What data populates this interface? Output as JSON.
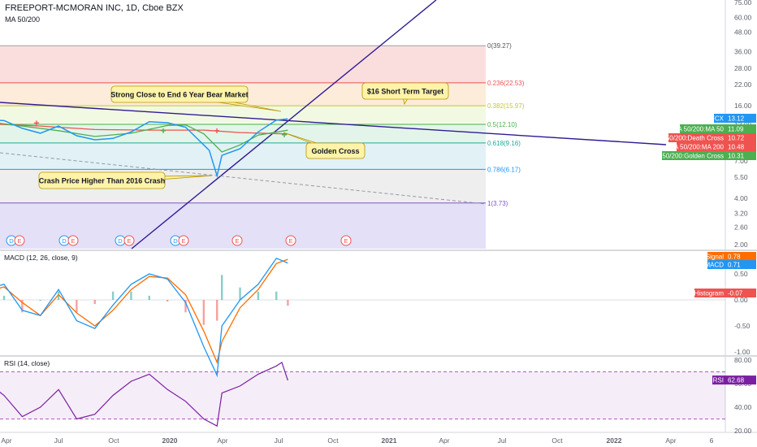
{
  "header": {
    "title": "FREEPORT-MCMORAN INC, 1D, Cboe BZX",
    "ma_label": "MA 50/200"
  },
  "colors": {
    "price": "#2196f3",
    "ma50": "#4caf50",
    "ma200": "#ef5350",
    "trend": "#311b92",
    "macd": "#2196f3",
    "signal": "#ff6d00",
    "rsi": "#7b1fa2"
  },
  "chart_data": [
    {
      "type": "line",
      "title": "FREEPORT-MCMORAN INC, 1D, Cboe BZX",
      "scale": "log",
      "x_ticks": [
        "Apr",
        "Jul",
        "Oct",
        "2020",
        "Apr",
        "Jul",
        "Oct",
        "2021",
        "Apr",
        "Jul",
        "Oct",
        "2022",
        "Apr",
        "6"
      ],
      "y_ticks": [
        "75.00",
        "60.00",
        "48.00",
        "36.00",
        "28.00",
        "22.00",
        "16.00",
        "12.00",
        "10.00",
        "7.00",
        "5.50",
        "4.00",
        "3.20",
        "2.60",
        "2.00"
      ],
      "ylim": [
        2.0,
        75.0
      ],
      "series": [
        {
          "name": "FCX",
          "x": [
            "2019-03",
            "2019-04",
            "2019-05",
            "2019-06",
            "2019-07",
            "2019-08",
            "2019-09",
            "2019-10",
            "2019-11",
            "2019-12",
            "2020-01",
            "2020-02",
            "2020-03-10",
            "2020-03-23",
            "2020-04",
            "2020-05",
            "2020-06",
            "2020-07",
            "2020-07-20"
          ],
          "values": [
            13.0,
            12.8,
            11.4,
            10.6,
            11.8,
            10.2,
            9.6,
            9.8,
            10.8,
            12.6,
            12.4,
            11.6,
            8.2,
            5.6,
            7.6,
            8.4,
            10.8,
            12.9,
            13.12
          ]
        },
        {
          "name": "MA 50",
          "x": [
            "2019-03",
            "2019-05",
            "2019-07",
            "2019-09",
            "2019-11",
            "2020-01",
            "2020-02",
            "2020-03",
            "2020-04",
            "2020-05",
            "2020-06",
            "2020-07-20"
          ],
          "values": [
            12.6,
            11.8,
            11.0,
            10.1,
            10.6,
            11.9,
            12.0,
            10.5,
            8.0,
            8.9,
            10.3,
            11.09
          ]
        },
        {
          "name": "MA 200",
          "x": [
            "2019-03",
            "2019-06",
            "2019-09",
            "2019-12",
            "2020-03",
            "2020-05",
            "2020-07-20"
          ],
          "values": [
            12.2,
            11.8,
            11.2,
            11.1,
            11.1,
            10.7,
            10.48
          ]
        }
      ],
      "fibonacci": [
        {
          "label": "0(39.27)",
          "value": 39.27
        },
        {
          "label": "0.236(22.53)",
          "value": 22.53
        },
        {
          "label": "0.382(15.97)",
          "value": 15.97
        },
        {
          "label": "0.5(12.10)",
          "value": 12.1
        },
        {
          "label": "0.618(9.16)",
          "value": 9.16
        },
        {
          "label": "0.786(6.17)",
          "value": 6.17
        },
        {
          "label": "1(3.73)",
          "value": 3.73
        }
      ],
      "annotations": [
        "Strong Close to End 6 Year Bear Market",
        "$16 Short Term Target",
        "Golden Cross",
        "Crash Price Higher Than 2016 Crash"
      ],
      "price_tags": [
        {
          "label": "FCX",
          "value": "13.12",
          "color": "#2196f3"
        },
        {
          "label": "MA 50/200:MA 50",
          "value": "11.09",
          "color": "#4caf50"
        },
        {
          "label": "MA 50/200:Death Cross",
          "value": "10.72",
          "color": "#ef5350"
        },
        {
          "label": "MA 50/200:MA 200",
          "value": "10.48",
          "color": "#ef5350"
        },
        {
          "label": "MA 50/200:Golden Cross",
          "value": "10.31",
          "color": "#4caf50"
        }
      ],
      "earnings_markers": [
        "D",
        "E",
        "D",
        "E",
        "D",
        "E",
        "D",
        "E",
        "E",
        "E",
        "E"
      ]
    },
    {
      "type": "line",
      "title": "MACD (12, 26, close, 9)",
      "y_ticks": [
        "0.50",
        "0.00",
        "-0.50",
        "-1.00",
        "-1.50"
      ],
      "ylim": [
        -1.7,
        0.9
      ],
      "series": [
        {
          "name": "MACD",
          "x": [
            "2019-03",
            "2019-04",
            "2019-05",
            "2019-06",
            "2019-07",
            "2019-08",
            "2019-09",
            "2019-10",
            "2019-11",
            "2019-12",
            "2020-01",
            "2020-02",
            "2020-03",
            "2020-03-23",
            "2020-04",
            "2020-05",
            "2020-06",
            "2020-07",
            "2020-07-20"
          ],
          "values": [
            0.2,
            0.3,
            -0.2,
            -0.3,
            0.2,
            -0.4,
            -0.55,
            -0.1,
            0.3,
            0.5,
            0.4,
            -0.05,
            -0.9,
            -1.45,
            -0.5,
            0.0,
            0.3,
            0.8,
            0.71
          ]
        },
        {
          "name": "Signal",
          "x": [
            "2019-03",
            "2019-04",
            "2019-05",
            "2019-06",
            "2019-07",
            "2019-08",
            "2019-09",
            "2019-10",
            "2019-11",
            "2019-12",
            "2020-01",
            "2020-02",
            "2020-03",
            "2020-03-23",
            "2020-04",
            "2020-05",
            "2020-06",
            "2020-07",
            "2020-07-20"
          ],
          "values": [
            0.15,
            0.25,
            -0.05,
            -0.3,
            0.1,
            -0.25,
            -0.5,
            -0.2,
            0.2,
            0.45,
            0.42,
            0.1,
            -0.6,
            -1.2,
            -0.8,
            -0.15,
            0.2,
            0.7,
            0.78
          ]
        }
      ],
      "tags": [
        {
          "label": "Signal",
          "value": "0.78",
          "color": "#ff6d00"
        },
        {
          "label": "MACD",
          "value": "0.71",
          "color": "#2196f3"
        },
        {
          "label": "Histogram",
          "value": "-0.07",
          "color": "#ef5350"
        }
      ]
    },
    {
      "type": "line",
      "title": "RSI (14, close)",
      "y_ticks": [
        "80.00",
        "60.00",
        "40.00",
        "20.00"
      ],
      "ylim": [
        18,
        84
      ],
      "series": [
        {
          "name": "RSI",
          "x": [
            "2019-03",
            "2019-04",
            "2019-05",
            "2019-06",
            "2019-07",
            "2019-08",
            "2019-09",
            "2019-10",
            "2019-11",
            "2019-12",
            "2020-01",
            "2020-02",
            "2020-03",
            "2020-03-23",
            "2020-04",
            "2020-05",
            "2020-06",
            "2020-07",
            "2020-07-10",
            "2020-07-20"
          ],
          "values": [
            62,
            50,
            32,
            40,
            55,
            30,
            34,
            50,
            62,
            68,
            55,
            45,
            30,
            24,
            52,
            58,
            68,
            75,
            78,
            62.68
          ]
        }
      ],
      "bands": [
        30,
        70
      ],
      "tags": [
        {
          "label": "RSI",
          "value": "62.68",
          "color": "#7b1fa2"
        }
      ]
    }
  ]
}
